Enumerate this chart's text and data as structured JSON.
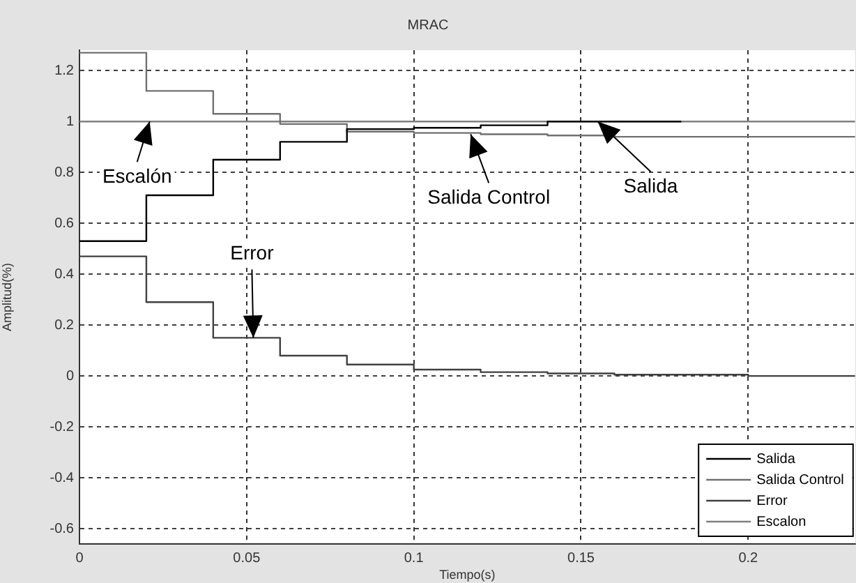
{
  "chart_data": {
    "type": "step",
    "title": "MRAC",
    "xlabel": "Tiempo(s)",
    "ylabel": "Amplitud(%)",
    "xlim": [
      0,
      0.232
    ],
    "ylim": [
      -0.66,
      1.28
    ],
    "xticks": [
      0,
      0.05,
      0.1,
      0.15,
      0.2
    ],
    "yticks": [
      -0.6,
      -0.4,
      -0.2,
      0,
      0.2,
      0.4,
      0.6,
      0.8,
      1,
      1.2
    ],
    "grid": true,
    "legend": "bottom right",
    "line_style": "solid",
    "marker": "none",
    "series": [
      {
        "name": "Salida",
        "color": "#000000",
        "x": [
          0,
          0.02,
          0.04,
          0.06,
          0.08,
          0.1,
          0.12,
          0.14,
          0.18
        ],
        "values": [
          0.53,
          0.71,
          0.85,
          0.92,
          0.97,
          0.975,
          0.985,
          1,
          1
        ]
      },
      {
        "name": "Salida Control",
        "color": "#707070",
        "x": [
          0,
          0.02,
          0.04,
          0.06,
          0.08,
          0.1,
          0.12,
          0.14,
          0.16,
          0.232
        ],
        "values": [
          1.27,
          1.12,
          1.03,
          0.99,
          0.96,
          0.955,
          0.95,
          0.945,
          0.94,
          0.94
        ]
      },
      {
        "name": "Error",
        "color": "#404040",
        "x": [
          0,
          0.02,
          0.04,
          0.06,
          0.08,
          0.1,
          0.12,
          0.14,
          0.16,
          0.2,
          0.232
        ],
        "values": [
          0.47,
          0.29,
          0.15,
          0.08,
          0.045,
          0.025,
          0.015,
          0.01,
          0.005,
          0,
          0
        ]
      },
      {
        "name": "Escalon",
        "color": "#808080",
        "x": [
          0,
          0.232
        ],
        "values": [
          1,
          1
        ]
      }
    ],
    "annotations": [
      {
        "text": "Escalón",
        "x": 0.021,
        "y": 1
      },
      {
        "text": "Salida Control",
        "x": 0.117,
        "y": 0.95
      },
      {
        "text": "Salida",
        "x": 0.155,
        "y": 1
      },
      {
        "text": "Error",
        "x": 0.052,
        "y": 0.15
      }
    ]
  }
}
